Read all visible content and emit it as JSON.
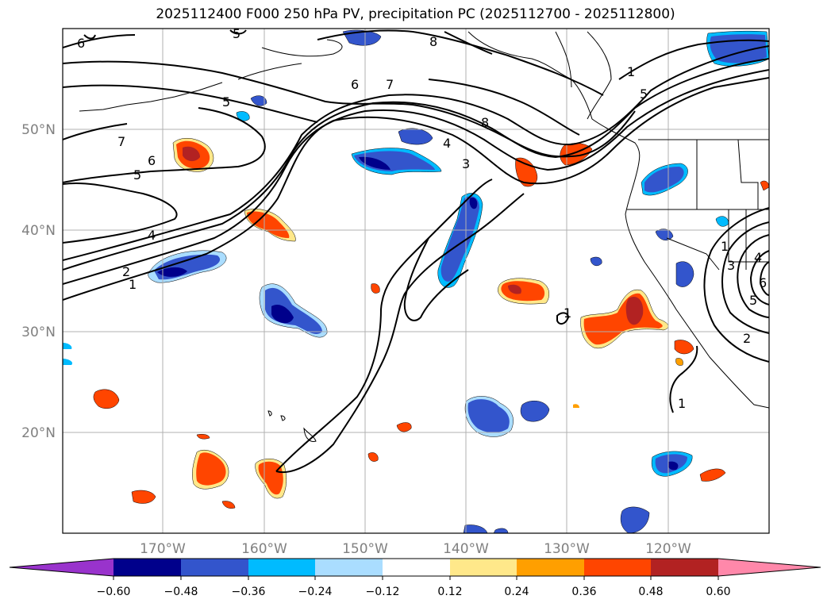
{
  "title": "2025112400 F000 250 hPa PV, precipitation PC (2025112700 - 2025112800)",
  "lat_labels": [
    "50°N",
    "40°N",
    "30°N",
    "20°N"
  ],
  "lon_labels": [
    "170°W",
    "160°W",
    "150°W",
    "140°W",
    "130°W",
    "120°W"
  ],
  "colorbar": {
    "ticks": [
      "−0.60",
      "−0.48",
      "−0.36",
      "−0.24",
      "−0.12",
      "0.12",
      "0.24",
      "0.36",
      "0.48",
      "0.60"
    ],
    "colors": [
      "#9933cc",
      "#00008b",
      "#3355cc",
      "#00bbff",
      "#aaddff",
      "#ffffff",
      "#ffe88a",
      "#ff9f00",
      "#ff4500",
      "#b22222",
      "#ff88aa"
    ]
  },
  "contour_labels": [
    "6",
    "5",
    "8",
    "6",
    "7",
    "8",
    "5",
    "5",
    "7",
    "6",
    "5",
    "4",
    "3",
    "4",
    "2",
    "1",
    "1",
    "1",
    "1",
    "3",
    "4",
    "6",
    "5",
    "2",
    "1"
  ],
  "colors": {
    "blue": "#3355cc",
    "navy": "#00008b",
    "cyan": "#00bbff",
    "red": "#ff4500",
    "darkred": "#b22222",
    "orange": "#ff9f00",
    "yellow": "#ffe88a"
  }
}
